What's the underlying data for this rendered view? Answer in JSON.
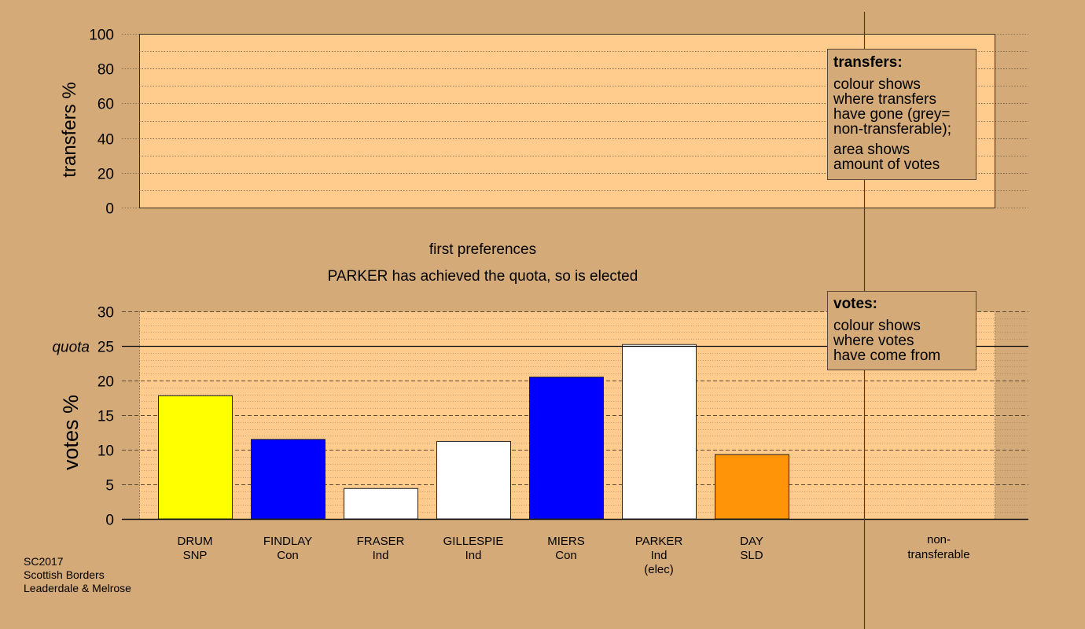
{
  "chart_data": [
    {
      "type": "area",
      "ylabel": "transfers %",
      "ylim": [
        0,
        100
      ],
      "yticks": [
        0,
        20,
        40,
        60,
        80,
        100
      ],
      "grid": true,
      "series": [],
      "legend": {
        "title": "transfers:",
        "lines_a": [
          "colour shows",
          "where transfers",
          "have gone (grey=",
          "non-transferable);"
        ],
        "lines_b": [
          "area shows",
          "amount of votes"
        ]
      }
    },
    {
      "type": "bar",
      "ylabel": "votes %",
      "ylim": [
        0,
        30
      ],
      "yticks": [
        0,
        5,
        10,
        15,
        20,
        25,
        30
      ],
      "grid": true,
      "quota": {
        "label": "quota",
        "value": 25
      },
      "categories": [
        {
          "lines": [
            "DRUM",
            "SNP"
          ],
          "value": 17.8,
          "color": "#ffff00"
        },
        {
          "lines": [
            "FINDLAY",
            "Con"
          ],
          "value": 11.5,
          "color": "#0000ff"
        },
        {
          "lines": [
            "FRASER",
            "Ind"
          ],
          "value": 4.4,
          "color": "#ffffff"
        },
        {
          "lines": [
            "GILLESPIE",
            "Ind"
          ],
          "value": 11.2,
          "color": "#ffffff"
        },
        {
          "lines": [
            "MIERS",
            "Con"
          ],
          "value": 20.5,
          "color": "#0000ff"
        },
        {
          "lines": [
            "PARKER",
            "Ind",
            "(elec)"
          ],
          "value": 25.2,
          "color": "#ffffff"
        },
        {
          "lines": [
            "DAY",
            "SLD"
          ],
          "value": 9.3,
          "color": "#ff9408"
        }
      ],
      "nontransferable": {
        "lines": [
          "non-",
          "transferable"
        ],
        "value": 0
      },
      "legend": {
        "title": "votes:",
        "lines": [
          "colour shows",
          "where votes",
          "have come from"
        ]
      }
    }
  ],
  "stage_title": "first preferences",
  "stage_note": "PARKER has achieved the quota, so is elected",
  "footer": [
    "SC2017",
    "Scottish Borders",
    "Leaderdale & Melrose"
  ]
}
